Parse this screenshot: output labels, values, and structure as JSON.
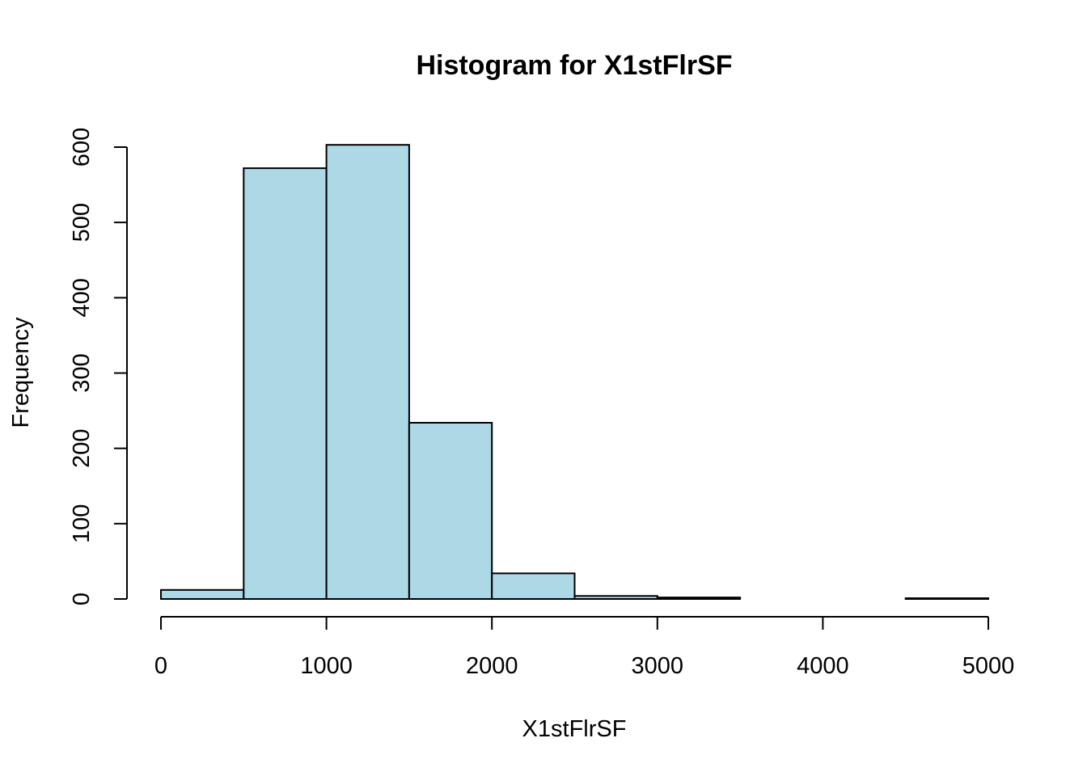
{
  "chart_data": {
    "type": "bar",
    "title": "Histogram for X1stFlrSF",
    "xlabel": "X1stFlrSF",
    "ylabel": "Frequency",
    "bin_edges": [
      0,
      500,
      1000,
      1500,
      2000,
      2500,
      3000,
      3500,
      4000,
      4500,
      5000
    ],
    "values": [
      12,
      572,
      603,
      234,
      34,
      4,
      2,
      0,
      0,
      1
    ],
    "xlim": [
      0,
      5000
    ],
    "ylim": [
      0,
      600
    ],
    "x_ticks": [
      0,
      1000,
      2000,
      3000,
      4000,
      5000
    ],
    "y_ticks": [
      0,
      100,
      200,
      300,
      400,
      500,
      600
    ],
    "bar_color": "#add8e6",
    "grid": false
  }
}
